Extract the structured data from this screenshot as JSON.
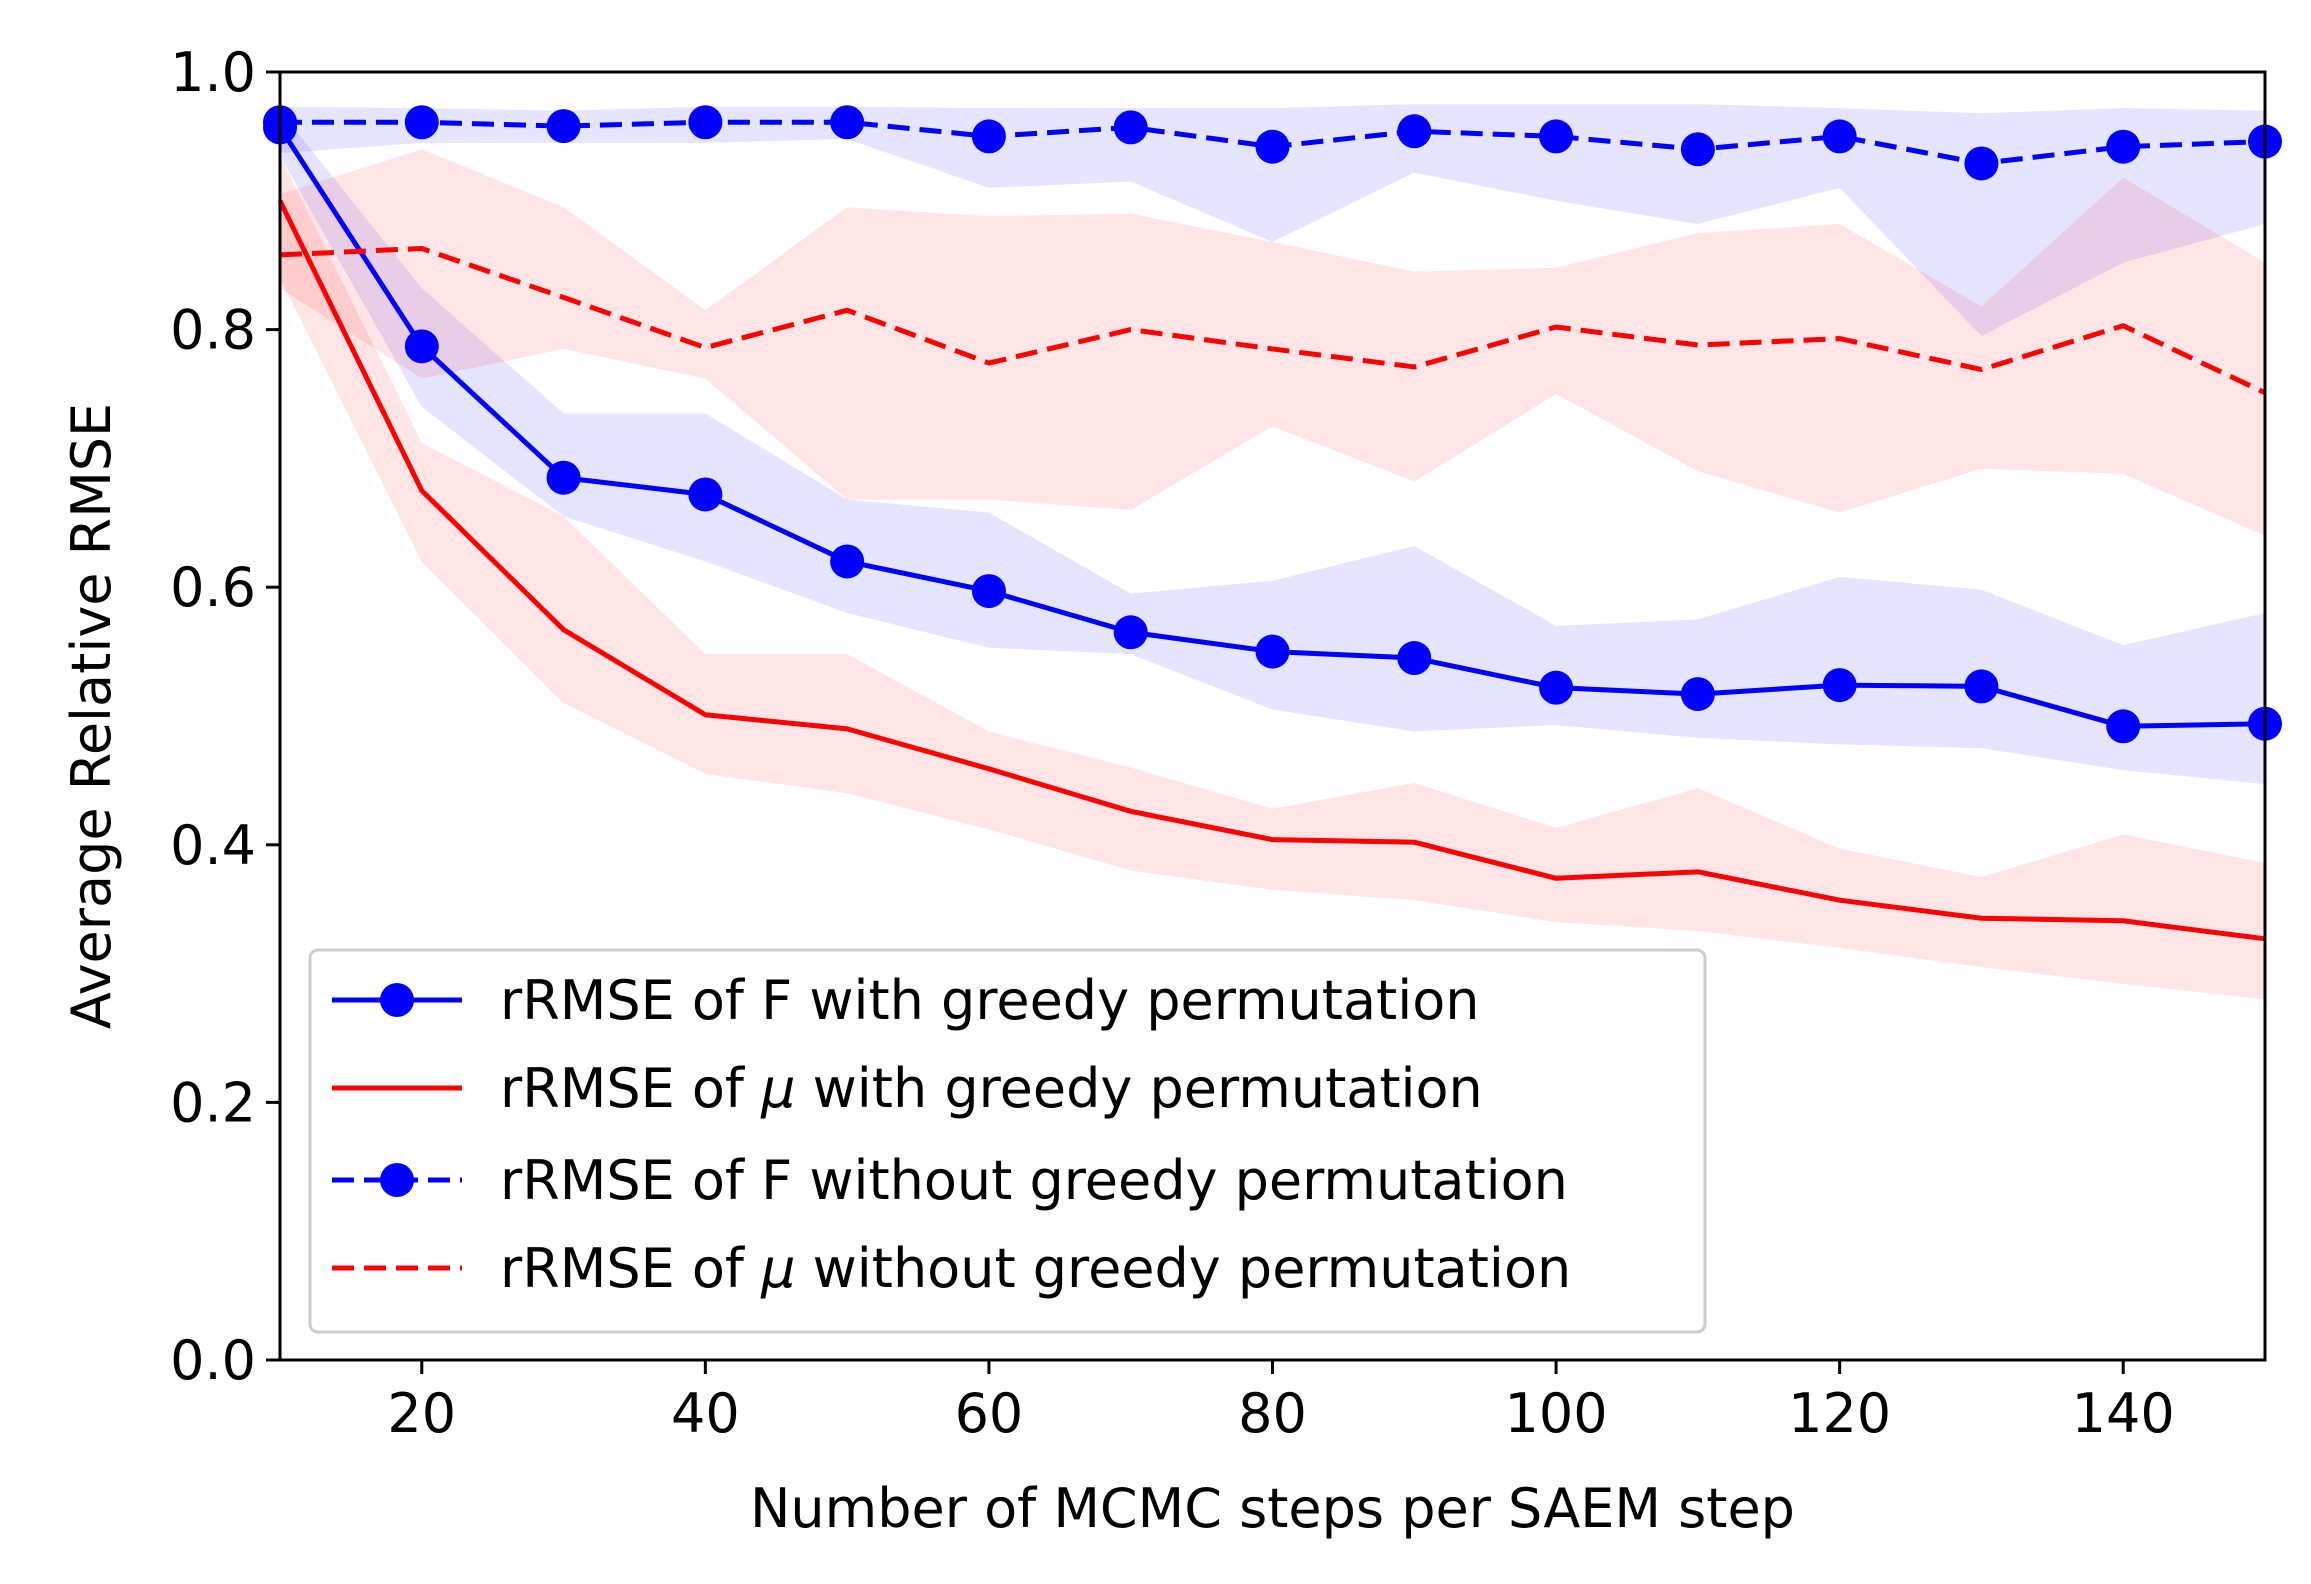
{
  "chart_data": {
    "type": "line",
    "title": "",
    "xlabel": "Number of MCMC steps per SAEM step",
    "ylabel": "Average Relative RMSE",
    "xlim": [
      10,
      150
    ],
    "ylim": [
      0.0,
      1.0
    ],
    "xticks": [
      20,
      40,
      60,
      80,
      100,
      120,
      140
    ],
    "xtick_labels": [
      "20",
      "40",
      "60",
      "80",
      "100",
      "120",
      "140"
    ],
    "yticks": [
      0.0,
      0.2,
      0.4,
      0.6,
      0.8,
      1.0
    ],
    "ytick_labels": [
      "0.0",
      "0.2",
      "0.4",
      "0.6",
      "0.8",
      "1.0"
    ],
    "grid": false,
    "legend_position": "lower-left",
    "x": [
      10,
      20,
      30,
      40,
      50,
      60,
      70,
      80,
      90,
      100,
      110,
      120,
      130,
      140,
      150
    ],
    "series": [
      {
        "name": "rRMSE of F with greedy permutation",
        "legend_prefix": "rRMSE of ",
        "legend_symbol": "F",
        "legend_symbol_italic": false,
        "legend_suffix": " with greedy permutation",
        "color": "#0000ff",
        "band_color": "#0000ff",
        "linestyle": "solid",
        "marker": "circle",
        "values": [
          0.957,
          0.787,
          0.685,
          0.672,
          0.62,
          0.597,
          0.565,
          0.55,
          0.545,
          0.522,
          0.517,
          0.524,
          0.523,
          0.492,
          0.494
        ],
        "lower": [
          0.935,
          0.74,
          0.655,
          0.62,
          0.58,
          0.553,
          0.548,
          0.505,
          0.488,
          0.493,
          0.483,
          0.478,
          0.475,
          0.458,
          0.447
        ],
        "upper": [
          0.97,
          0.832,
          0.735,
          0.735,
          0.668,
          0.658,
          0.595,
          0.605,
          0.632,
          0.57,
          0.575,
          0.608,
          0.598,
          0.555,
          0.58
        ]
      },
      {
        "name": "rRMSE of μ with greedy permutation",
        "legend_prefix": "rRMSE of ",
        "legend_symbol": "μ",
        "legend_symbol_italic": true,
        "legend_suffix": " with greedy permutation",
        "color": "#ff0000",
        "band_color": "#ff0000",
        "linestyle": "solid",
        "marker": "none",
        "values": [
          0.9,
          0.675,
          0.567,
          0.501,
          0.49,
          0.459,
          0.426,
          0.404,
          0.402,
          0.374,
          0.379,
          0.357,
          0.343,
          0.341,
          0.327
        ],
        "lower": [
          0.84,
          0.62,
          0.51,
          0.455,
          0.44,
          0.412,
          0.38,
          0.365,
          0.357,
          0.34,
          0.333,
          0.32,
          0.305,
          0.292,
          0.28
        ],
        "upper": [
          0.935,
          0.712,
          0.655,
          0.548,
          0.548,
          0.488,
          0.46,
          0.428,
          0.448,
          0.413,
          0.444,
          0.397,
          0.375,
          0.408,
          0.386
        ]
      },
      {
        "name": "rRMSE of F without greedy permutation",
        "legend_prefix": "rRMSE of ",
        "legend_symbol": "F",
        "legend_symbol_italic": false,
        "legend_suffix": " without greedy permutation",
        "color": "#0000ff",
        "band_color": "#0000ff",
        "linestyle": "dashed",
        "marker": "circle",
        "values": [
          0.961,
          0.961,
          0.958,
          0.961,
          0.961,
          0.95,
          0.957,
          0.942,
          0.954,
          0.95,
          0.94,
          0.95,
          0.929,
          0.942,
          0.946
        ],
        "lower": [
          0.937,
          0.945,
          0.945,
          0.945,
          0.948,
          0.91,
          0.915,
          0.868,
          0.922,
          0.9,
          0.882,
          0.91,
          0.795,
          0.852,
          0.882
        ],
        "upper": [
          0.973,
          0.972,
          0.97,
          0.973,
          0.973,
          0.972,
          0.972,
          0.972,
          0.975,
          0.975,
          0.975,
          0.972,
          0.968,
          0.972,
          0.97
        ]
      },
      {
        "name": "rRMSE of μ without greedy permutation",
        "legend_prefix": "rRMSE of ",
        "legend_symbol": "μ",
        "legend_symbol_italic": true,
        "legend_suffix": " without greedy permutation",
        "color": "#ff0000",
        "band_color": "#ff0000",
        "linestyle": "dashed",
        "marker": "none",
        "values": [
          0.858,
          0.863,
          0.825,
          0.786,
          0.815,
          0.774,
          0.8,
          0.785,
          0.771,
          0.802,
          0.788,
          0.793,
          0.769,
          0.803,
          0.751
        ],
        "lower": [
          0.832,
          0.762,
          0.785,
          0.762,
          0.668,
          0.668,
          0.66,
          0.725,
          0.682,
          0.75,
          0.69,
          0.658,
          0.692,
          0.688,
          0.64
        ],
        "upper": [
          0.905,
          0.94,
          0.895,
          0.815,
          0.895,
          0.888,
          0.89,
          0.868,
          0.845,
          0.848,
          0.875,
          0.882,
          0.818,
          0.918,
          0.852
        ]
      }
    ]
  }
}
